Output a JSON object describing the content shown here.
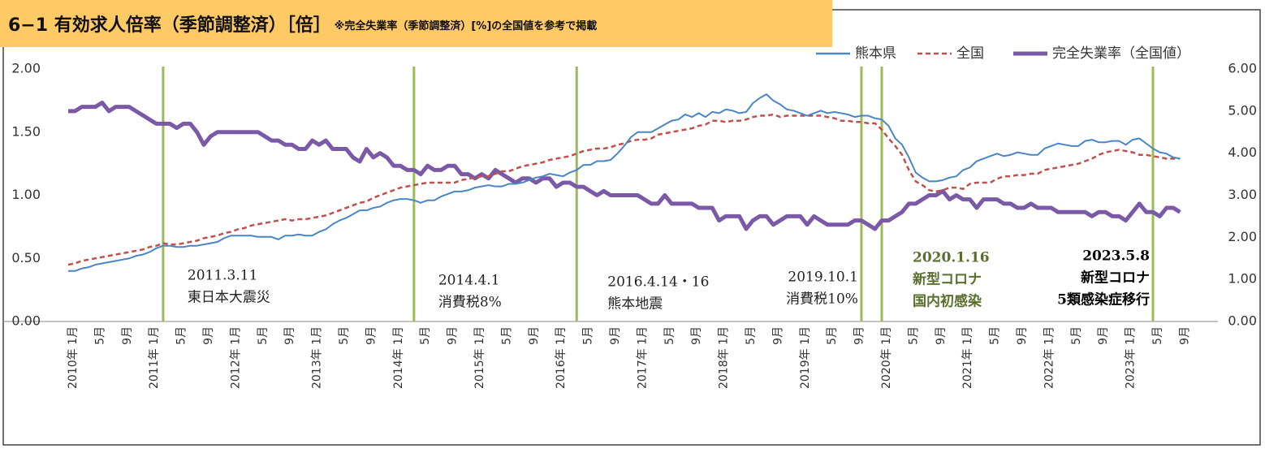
{
  "chart_data": {
    "type": "line",
    "title": "6−1 有効求人倍率（季節調整済）［倍］",
    "subtitle": "※完全失業率（季節調整済）[%]の全国値を参考で掲載",
    "legend": "top",
    "grid": false,
    "categories": [
      "2010年 1月",
      null,
      null,
      null,
      "5月",
      null,
      null,
      null,
      "9月",
      null,
      null,
      null,
      "2011年 1月",
      null,
      null,
      null,
      "5月",
      null,
      null,
      null,
      "9月",
      null,
      null,
      null,
      "2012年 1月",
      null,
      null,
      null,
      "5月",
      null,
      null,
      null,
      "9月",
      null,
      null,
      null,
      "2013年 1月",
      null,
      null,
      null,
      "5月",
      null,
      null,
      null,
      "9月",
      null,
      null,
      null,
      "2014年 1月",
      null,
      null,
      null,
      "5月",
      null,
      null,
      null,
      "9月",
      null,
      null,
      null,
      "2015年 1月",
      null,
      null,
      null,
      "5月",
      null,
      null,
      null,
      "9月",
      null,
      null,
      null,
      "2016年 1月",
      null,
      null,
      null,
      "5月",
      null,
      null,
      null,
      "9月",
      null,
      null,
      null,
      "2017年 1月",
      null,
      null,
      null,
      "5月",
      null,
      null,
      null,
      "9月",
      null,
      null,
      null,
      "2018年 1月",
      null,
      null,
      null,
      "5月",
      null,
      null,
      null,
      "9月",
      null,
      null,
      null,
      "2019年 1月",
      null,
      null,
      null,
      "5月",
      null,
      null,
      null,
      "9月",
      null,
      null,
      null,
      "2020年 1月",
      null,
      null,
      null,
      "5月",
      null,
      null,
      null,
      "9月",
      null,
      null,
      null,
      "2021年 1月",
      null,
      null,
      null,
      "5月",
      null,
      null,
      null,
      "9月",
      null,
      null,
      null,
      "2022年 1月",
      null,
      null,
      null,
      "5月",
      null,
      null,
      null,
      "9月",
      null,
      null,
      null,
      "2023年 1月",
      null,
      null,
      null,
      "5月",
      null,
      null,
      null,
      "9月"
    ],
    "ylim": [
      0,
      2
    ],
    "yticks": [
      {
        "value": 0,
        "label": "0.00"
      },
      {
        "value": 0.5,
        "label": "0.50"
      },
      {
        "value": 1,
        "label": "1.00"
      },
      {
        "value": 1.5,
        "label": "1.50"
      },
      {
        "value": 2,
        "label": "2.00"
      }
    ],
    "y2lim": [
      0,
      6
    ],
    "y2ticks": [
      {
        "value": 0,
        "label": "0.00"
      },
      {
        "value": 1,
        "label": "1.00"
      },
      {
        "value": 2,
        "label": "2.00"
      },
      {
        "value": 3,
        "label": "3.00"
      },
      {
        "value": 4,
        "label": "4.00"
      },
      {
        "value": 5,
        "label": "5.00"
      },
      {
        "value": 6,
        "label": "6.00"
      }
    ],
    "series": [
      {
        "name": "熊本県",
        "color": "#4a86c5",
        "dash": false,
        "values": [
          0.4,
          0.4,
          0.42,
          0.43,
          0.45,
          0.46,
          0.47,
          0.48,
          0.49,
          0.5,
          0.52,
          0.53,
          0.55,
          0.58,
          0.6,
          0.6,
          0.59,
          0.59,
          0.6,
          0.6,
          0.61,
          0.62,
          0.63,
          0.66,
          0.68,
          0.68,
          0.68,
          0.68,
          0.67,
          0.67,
          0.67,
          0.65,
          0.68,
          0.68,
          0.69,
          0.68,
          0.68,
          0.71,
          0.73,
          0.77,
          0.8,
          0.82,
          0.85,
          0.88,
          0.88,
          0.9,
          0.91,
          0.94,
          0.96,
          0.97,
          0.97,
          0.96,
          0.94,
          0.96,
          0.96,
          0.99,
          1.01,
          1.03,
          1.03,
          1.04,
          1.06,
          1.07,
          1.08,
          1.07,
          1.07,
          1.09,
          1.09,
          1.1,
          1.12,
          1.14,
          1.15,
          1.17,
          1.16,
          1.15,
          1.18,
          1.2,
          1.24,
          1.24,
          1.27,
          1.27,
          1.28,
          1.33,
          1.39,
          1.46,
          1.5,
          1.5,
          1.5,
          1.53,
          1.56,
          1.59,
          1.6,
          1.64,
          1.62,
          1.65,
          1.62,
          1.66,
          1.65,
          1.68,
          1.67,
          1.65,
          1.66,
          1.73,
          1.77,
          1.8,
          1.75,
          1.72,
          1.68,
          1.67,
          1.65,
          1.63,
          1.65,
          1.67,
          1.65,
          1.66,
          1.65,
          1.64,
          1.62,
          1.63,
          1.63,
          1.61,
          1.6,
          1.55,
          1.45,
          1.4,
          1.3,
          1.18,
          1.14,
          1.11,
          1.11,
          1.12,
          1.14,
          1.15,
          1.2,
          1.22,
          1.27,
          1.29,
          1.31,
          1.33,
          1.31,
          1.32,
          1.34,
          1.33,
          1.32,
          1.32,
          1.37,
          1.39,
          1.41,
          1.4,
          1.39,
          1.39,
          1.43,
          1.44,
          1.42,
          1.42,
          1.43,
          1.43,
          1.4,
          1.44,
          1.45,
          1.41,
          1.37,
          1.34,
          1.33,
          1.3,
          1.29
        ]
      },
      {
        "name": "全国",
        "color": "#c0504d",
        "dash": true,
        "values": [
          0.45,
          0.46,
          0.48,
          0.49,
          0.5,
          0.51,
          0.52,
          0.53,
          0.54,
          0.55,
          0.56,
          0.57,
          0.59,
          0.6,
          0.62,
          0.61,
          0.61,
          0.62,
          0.63,
          0.64,
          0.66,
          0.67,
          0.68,
          0.7,
          0.71,
          0.73,
          0.74,
          0.76,
          0.77,
          0.78,
          0.79,
          0.8,
          0.81,
          0.8,
          0.81,
          0.81,
          0.82,
          0.83,
          0.84,
          0.86,
          0.88,
          0.9,
          0.92,
          0.94,
          0.95,
          0.98,
          1.0,
          1.02,
          1.04,
          1.06,
          1.07,
          1.08,
          1.09,
          1.1,
          1.1,
          1.1,
          1.1,
          1.1,
          1.12,
          1.13,
          1.14,
          1.15,
          1.15,
          1.17,
          1.19,
          1.19,
          1.21,
          1.23,
          1.24,
          1.25,
          1.26,
          1.28,
          1.29,
          1.3,
          1.31,
          1.33,
          1.35,
          1.36,
          1.37,
          1.37,
          1.38,
          1.4,
          1.41,
          1.43,
          1.44,
          1.44,
          1.45,
          1.48,
          1.49,
          1.5,
          1.51,
          1.52,
          1.53,
          1.55,
          1.56,
          1.59,
          1.59,
          1.58,
          1.59,
          1.59,
          1.6,
          1.62,
          1.63,
          1.63,
          1.64,
          1.62,
          1.63,
          1.63,
          1.63,
          1.63,
          1.63,
          1.63,
          1.62,
          1.61,
          1.59,
          1.59,
          1.58,
          1.58,
          1.57,
          1.57,
          1.52,
          1.45,
          1.39,
          1.32,
          1.2,
          1.11,
          1.08,
          1.04,
          1.03,
          1.04,
          1.06,
          1.06,
          1.05,
          1.09,
          1.1,
          1.1,
          1.1,
          1.13,
          1.15,
          1.15,
          1.16,
          1.16,
          1.17,
          1.17,
          1.2,
          1.21,
          1.22,
          1.23,
          1.24,
          1.25,
          1.27,
          1.29,
          1.32,
          1.34,
          1.35,
          1.36,
          1.35,
          1.34,
          1.32,
          1.32,
          1.31,
          1.3,
          1.29,
          1.29,
          1.29
        ]
      },
      {
        "name": "完全失業率（全国値）",
        "color": "#7a5aa6",
        "dash": false,
        "axis": "y2",
        "values": [
          5.0,
          5.0,
          5.1,
          5.1,
          5.1,
          5.2,
          5.0,
          5.1,
          5.1,
          5.1,
          5.0,
          4.9,
          4.8,
          4.7,
          4.7,
          4.7,
          4.6,
          4.7,
          4.7,
          4.5,
          4.2,
          4.4,
          4.5,
          4.5,
          4.5,
          4.5,
          4.5,
          4.5,
          4.5,
          4.4,
          4.3,
          4.3,
          4.2,
          4.2,
          4.1,
          4.1,
          4.3,
          4.2,
          4.3,
          4.1,
          4.1,
          4.1,
          3.9,
          3.8,
          4.1,
          3.9,
          4.0,
          3.9,
          3.7,
          3.7,
          3.6,
          3.6,
          3.5,
          3.7,
          3.6,
          3.6,
          3.7,
          3.7,
          3.5,
          3.5,
          3.4,
          3.5,
          3.4,
          3.6,
          3.5,
          3.4,
          3.3,
          3.4,
          3.4,
          3.3,
          3.4,
          3.4,
          3.2,
          3.3,
          3.3,
          3.2,
          3.2,
          3.1,
          3.0,
          3.1,
          3.0,
          3.0,
          3.0,
          3.0,
          3.0,
          2.9,
          2.8,
          2.8,
          3.0,
          2.8,
          2.8,
          2.8,
          2.8,
          2.7,
          2.7,
          2.7,
          2.4,
          2.5,
          2.5,
          2.5,
          2.2,
          2.4,
          2.5,
          2.5,
          2.3,
          2.4,
          2.5,
          2.5,
          2.5,
          2.3,
          2.5,
          2.4,
          2.3,
          2.3,
          2.3,
          2.3,
          2.4,
          2.4,
          2.3,
          2.2,
          2.4,
          2.4,
          2.5,
          2.6,
          2.8,
          2.8,
          2.9,
          3.0,
          3.0,
          3.1,
          2.9,
          3.0,
          2.9,
          2.9,
          2.7,
          2.9,
          2.9,
          2.9,
          2.8,
          2.8,
          2.7,
          2.7,
          2.8,
          2.7,
          2.7,
          2.7,
          2.6,
          2.6,
          2.6,
          2.6,
          2.6,
          2.5,
          2.6,
          2.6,
          2.5,
          2.5,
          2.4,
          2.6,
          2.8,
          2.6,
          2.6,
          2.5,
          2.7,
          2.7,
          2.6
        ]
      }
    ],
    "annotations": [
      {
        "date": "2011.3.11",
        "lines": [
          "東日本大震災"
        ],
        "color": "#222222"
      },
      {
        "date": "2014.4.1",
        "lines": [
          "消費税8%"
        ],
        "color": "#222222"
      },
      {
        "date": "2016.4.14・16",
        "lines": [
          "熊本地震"
        ],
        "color": "#222222"
      },
      {
        "date": "2019.10.1",
        "lines": [
          "消費税10%"
        ],
        "color": "#222222"
      },
      {
        "date": "2020.1.16",
        "lines": [
          "新型コロナ",
          "国内初感染"
        ],
        "color": "#5a6e2e"
      },
      {
        "date": "2023.5.8",
        "lines": [
          "新型コロナ",
          "5類感染症移行"
        ],
        "color": "#000000"
      }
    ],
    "event_line_color": "#9bbb59"
  }
}
